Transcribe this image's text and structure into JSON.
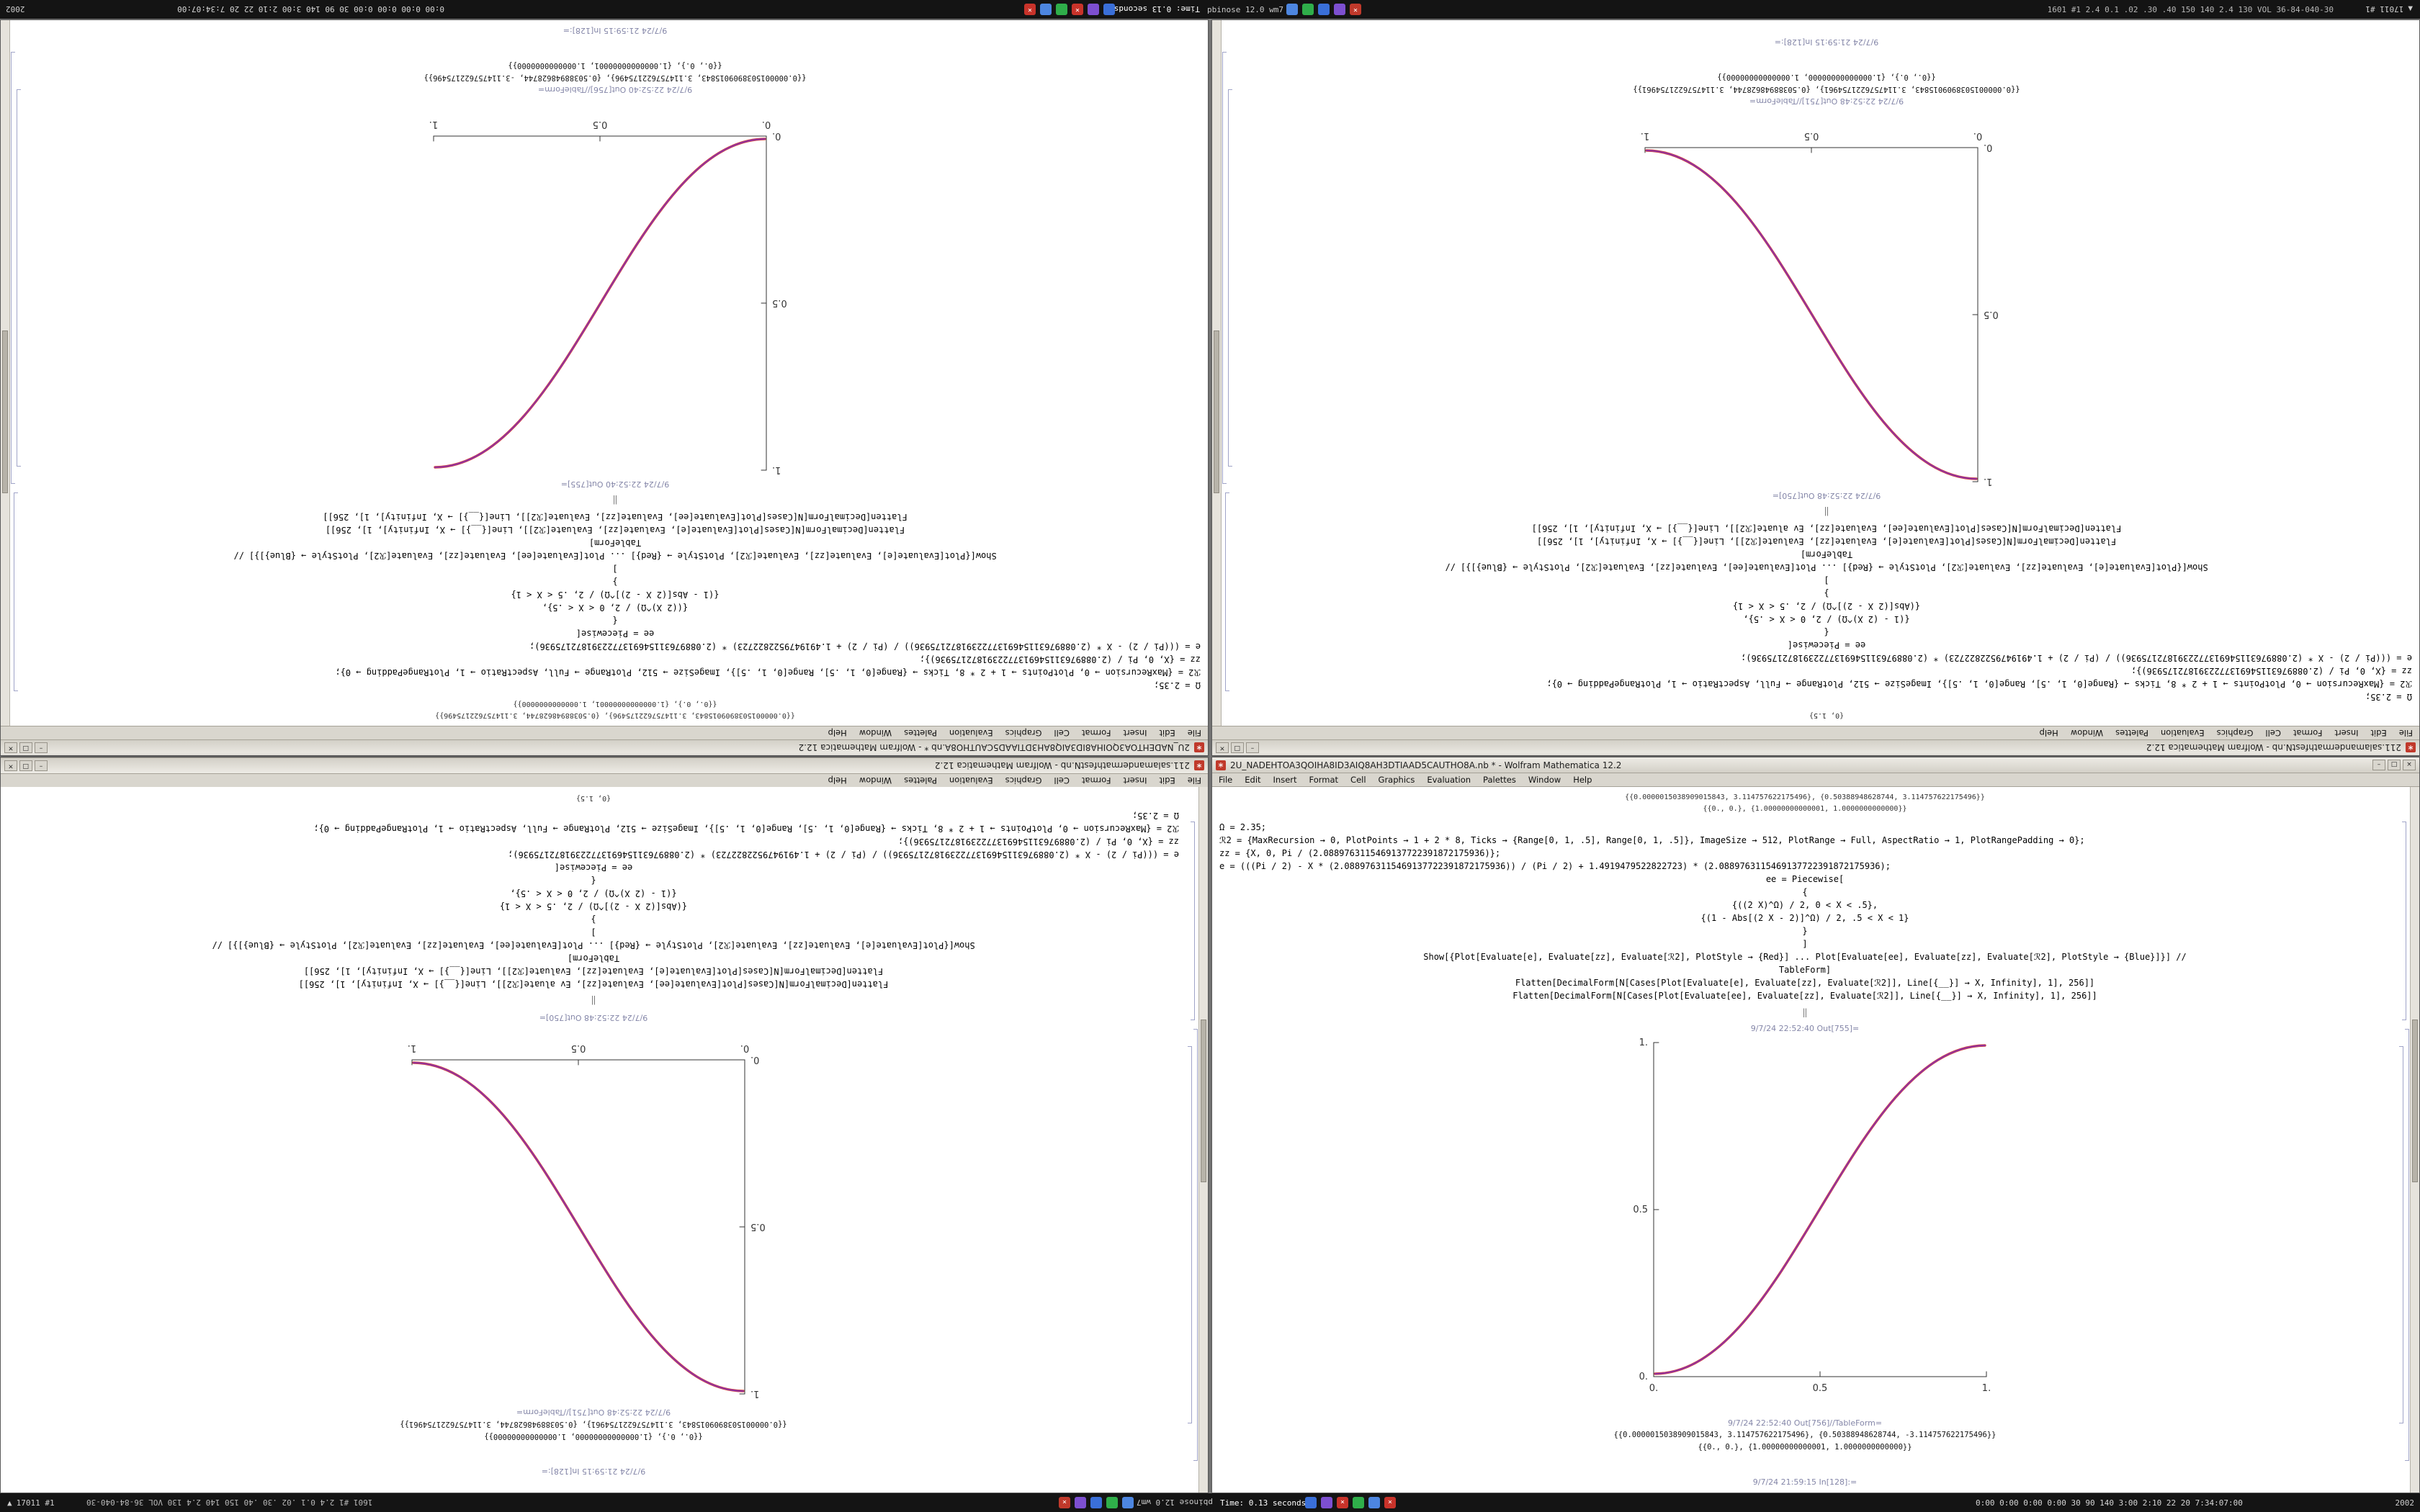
{
  "desktop": {
    "background": "#8a8a8a"
  },
  "taskbar": {
    "left_arrow": "▲",
    "left_text": "17011 #1",
    "flipped_stats_text": "1601 #1 2.4 0.1 .02 .30 .40 150 140 2.4 130 VOL 36-84-040-30",
    "app_flipped_text": "pbinose 12.0 wm7",
    "time_text": "Time: 0.13 seconds",
    "right_stats_text": "0:00 0:00 0:00 0:00 30 90 140 3:00 2:10 22 20 7:34:07:00",
    "corner_text": "2002",
    "icon_groups": [
      [
        {
          "name": "mathematica-taskbar-icon",
          "color": "#c0392b",
          "glyph": "×"
        },
        {
          "name": "violet-app-icon",
          "color": "#7d4fd0",
          "glyph": ""
        },
        {
          "name": "blue-app-icon",
          "color": "#3a6fd8",
          "glyph": ""
        },
        {
          "name": "green-app-icon",
          "color": "#2fae4a",
          "glyph": ""
        },
        {
          "name": "blue-app-icon-2",
          "color": "#4d86e0",
          "glyph": ""
        }
      ],
      [
        {
          "name": "blue-app-icon-3",
          "color": "#3a6fd8",
          "glyph": ""
        },
        {
          "name": "violet-app-icon-2",
          "color": "#7d4fd0",
          "glyph": ""
        },
        {
          "name": "red-close-icon",
          "color": "#c8332a",
          "glyph": "×"
        },
        {
          "name": "green-app-icon-2",
          "color": "#2fae4a",
          "glyph": ""
        },
        {
          "name": "blue-app-icon-4",
          "color": "#4d86e0",
          "glyph": ""
        },
        {
          "name": "red-close-icon-2",
          "color": "#c8332a",
          "glyph": "×"
        }
      ]
    ]
  },
  "window_chrome": {
    "app_icon_glyph": "∗",
    "menu": [
      "File",
      "Edit",
      "Insert",
      "Format",
      "Cell",
      "Graphics",
      "Evaluation",
      "Palettes",
      "Window",
      "Help"
    ],
    "buttons": {
      "minimize": "–",
      "maximize": "□",
      "close": "×"
    }
  },
  "notebooks": {
    "A": {
      "title": "2U_NADEHTOA3QOIHA8ID3AIQ8AH3DTIAAD5CAUTHO8A.nb * - Wolfram Mathematica 12.2",
      "items": [
        {
          "type": "partial",
          "text": "{{0.0000015038909015843, 3.114757622175496}, {0.50388948628744, 3.114757622175496}}"
        },
        {
          "type": "partial",
          "text": "{{0., 0.}, {1.00000000000001, 1.0000000000000}}"
        },
        {
          "type": "code",
          "align": "left",
          "text": "Ω = 2.35;"
        },
        {
          "type": "code",
          "align": "left",
          "text": "ℛ2 = {MaxRecursion → 0, PlotPoints → 1 + 2 * 8, Ticks → {Range[0, 1, .5], Range[0, 1, .5]}, ImageSize → 512, PlotRange → Full, AspectRatio → 1, PlotRangePadding → 0};"
        },
        {
          "type": "code",
          "align": "left",
          "text": "zz = {X, 0, Pi / (2.0889763115469137722391872175936)};"
        },
        {
          "type": "code",
          "align": "left",
          "text": "e = (((Pi / 2) - X * (2.0889763115469137722391872175936)) / (Pi / 2) + 1.4919479522822723) * (2.0889763115469137722391872175936);"
        },
        {
          "type": "code",
          "align": "center",
          "text": "ee = Piecewise["
        },
        {
          "type": "code",
          "align": "center",
          "text": "{"
        },
        {
          "type": "code",
          "align": "center",
          "text": "{((2 X)^Ω) / 2, 0 < X < .5},"
        },
        {
          "type": "code",
          "align": "center",
          "text": "{(1 - Abs[(2 X - 2)]^Ω) / 2, .5 < X < 1}"
        },
        {
          "type": "code",
          "align": "center",
          "text": "}"
        },
        {
          "type": "code",
          "align": "center",
          "text": "]"
        },
        {
          "type": "code",
          "align": "center",
          "text": "Show[{Plot[Evaluate[e], Evaluate[zz], Evaluate[ℛ2], PlotStyle → {Red}] ... Plot[Evaluate[ee], Evaluate[zz], Evaluate[ℛ2], PlotStyle → {Blue}]}] //"
        },
        {
          "type": "code",
          "align": "center",
          "text": "TableForm]"
        },
        {
          "type": "code",
          "align": "center",
          "text": "Flatten[DecimalForm[N[Cases[Plot[Evaluate[e], Evaluate[zz], Evaluate[ℛ2]], Line[{__}] → X, Infinity], 1], 256]]"
        },
        {
          "type": "code",
          "align": "center",
          "text": "Flatten[DecimalForm[N[Cases[Plot[Evaluate[ee], Evaluate[zz], Evaluate[ℛ2]], Line[{__}] → X, Infinity], 1], 256]]"
        },
        {
          "type": "divider",
          "text": "‖"
        },
        {
          "type": "out-label",
          "text": "9/7/24 22:52:40 Out[755]="
        },
        {
          "type": "plot"
        },
        {
          "type": "out-label",
          "text": "9/7/24 22:52:40 Out[756]//TableForm="
        },
        {
          "type": "output",
          "text": "{{0.0000015038909015843, 3.114757622175496}, {0.50388948628744, -3.114757622175496}}"
        },
        {
          "type": "output",
          "text": "{{0., 0.}, {1.00000000000001, 1.0000000000000}}"
        },
        {
          "type": "in-label",
          "text": "9/7/24 21:59:15 In[128]:="
        }
      ],
      "plot": {
        "type": "line",
        "direction": "up",
        "xtick_labels": [
          "0.",
          "0.5",
          "1."
        ],
        "ytick_labels": [
          "0.",
          "0.5",
          "1."
        ],
        "xlim": [
          0,
          1
        ],
        "ylim": [
          0,
          1
        ],
        "curve_colors": [
          "#d04545",
          "#8a2fa8"
        ],
        "axis_color": "#333333"
      }
    },
    "B": {
      "title": "211.salamandermathfestN.nb - Wolfram Mathematica 12.2",
      "items": [
        {
          "type": "partial",
          "text": "{0, 1.5}"
        },
        {
          "type": "code",
          "align": "left",
          "text": "Ω = 2.35;"
        },
        {
          "type": "code",
          "align": "left",
          "text": "ℛ2 = {MaxRecursion → 0, PlotPoints → 1 + 2 * 8, Ticks → {Range[0, 1, .5], Range[0, 1, .5]}, ImageSize → 512, PlotRange → Full, AspectRatio → 1, PlotRangePadding → 0};"
        },
        {
          "type": "code",
          "align": "left",
          "text": "zz = {X, 0, Pi / (2.0889763115469137722391872175936)};"
        },
        {
          "type": "code",
          "align": "left",
          "text": "e = (((Pi / 2) - X * (2.0889763115469137722391872175936)) / (Pi / 2) + 1.4919479522822723) * (2.0889763115469137722391872175936);"
        },
        {
          "type": "code",
          "align": "center",
          "text": "ee = Piecewise["
        },
        {
          "type": "code",
          "align": "center",
          "text": "{"
        },
        {
          "type": "code",
          "align": "center",
          "text": "{(1 - (2 X)^Ω) / 2, 0 < X < .5},"
        },
        {
          "type": "code",
          "align": "center",
          "text": "{(Abs[(2 X - 2)]^Ω) / 2, .5 < X < 1}"
        },
        {
          "type": "code",
          "align": "center",
          "text": "}"
        },
        {
          "type": "code",
          "align": "center",
          "text": "]"
        },
        {
          "type": "code",
          "align": "center",
          "text": "Show[{Plot[Evaluate[e], Evaluate[zz], Evaluate[ℛ2], PlotStyle → {Red}] ... Plot[Evaluate[ee], Evaluate[zz], Evaluate[ℛ2], PlotStyle → {Blue}]}] //"
        },
        {
          "type": "code",
          "align": "center",
          "text": "TableForm]"
        },
        {
          "type": "code",
          "align": "center",
          "text": "Flatten[DecimalForm[N[Cases[Plot[Evaluate[e], Evaluate[zz], Evaluate[ℛ2]], Line[{__}] → X, Infinity], 1], 256]]"
        },
        {
          "type": "code",
          "align": "center",
          "text": "Flatten[DecimalForm[N[Cases[Plot[Evaluate[ee], Evaluate[zz], Ev aluate[ℛ2]], Line[{__}] → X, Infinity], 1], 256]]"
        },
        {
          "type": "divider",
          "text": "‖"
        },
        {
          "type": "out-label",
          "text": "9/7/24 22:52:48 Out[750]="
        },
        {
          "type": "plot"
        },
        {
          "type": "out-label",
          "text": "9/7/24 22:52:48 Out[751]//TableForm="
        },
        {
          "type": "output",
          "text": "{{0.0000015038909015843, 3.1147576221754961}, {0.50388948628744, 3.1147576221754961}}"
        },
        {
          "type": "output",
          "text": "{{0., 0.}, {1.00000000000000, 1.00000000000000}}"
        },
        {
          "type": "in-label",
          "text": "9/7/24 21:59:15 In[128]:="
        }
      ],
      "plot": {
        "type": "line",
        "direction": "down",
        "xtick_labels": [
          "0.",
          "0.5",
          "1."
        ],
        "ytick_labels": [
          "0.",
          "0.5",
          "1."
        ],
        "xlim": [
          0,
          1
        ],
        "ylim": [
          0,
          1
        ],
        "curve_colors": [
          "#d04545",
          "#8a2fa8"
        ],
        "axis_color": "#333333"
      }
    }
  },
  "windows": [
    {
      "pos": "tl",
      "notebook": "A",
      "mode": "rotated"
    },
    {
      "pos": "tr",
      "notebook": "B",
      "mode": "rotated"
    },
    {
      "pos": "bl",
      "notebook": "B",
      "mode": "flipped"
    },
    {
      "pos": "br",
      "notebook": "A",
      "mode": "normal"
    }
  ]
}
